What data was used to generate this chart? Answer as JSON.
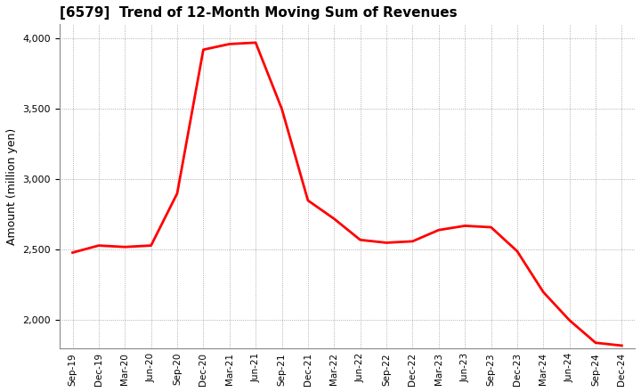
{
  "title": "[6579]  Trend of 12-Month Moving Sum of Revenues",
  "ylabel": "Amount (million yen)",
  "line_color": "#ff0000",
  "line_width": 2.0,
  "background_color": "#ffffff",
  "grid_color": "#999999",
  "ylim": [
    1800,
    4100
  ],
  "yticks": [
    2000,
    2500,
    3000,
    3500,
    4000
  ],
  "labels": [
    "Sep-19",
    "Dec-19",
    "Mar-20",
    "Jun-20",
    "Sep-20",
    "Dec-20",
    "Mar-21",
    "Jun-21",
    "Sep-21",
    "Dec-21",
    "Mar-22",
    "Jun-22",
    "Sep-22",
    "Dec-22",
    "Mar-23",
    "Jun-23",
    "Sep-23",
    "Dec-23",
    "Mar-24",
    "Jun-24",
    "Sep-24",
    "Dec-24"
  ],
  "values": [
    2480,
    2530,
    2520,
    2530,
    2900,
    3920,
    3960,
    3970,
    3500,
    2850,
    2720,
    2570,
    2550,
    2560,
    2640,
    2670,
    2660,
    2490,
    2200,
    2000,
    1840,
    1820
  ],
  "title_fontsize": 11,
  "ylabel_fontsize": 9,
  "tick_fontsize": 8,
  "xtick_fontsize": 7.5
}
